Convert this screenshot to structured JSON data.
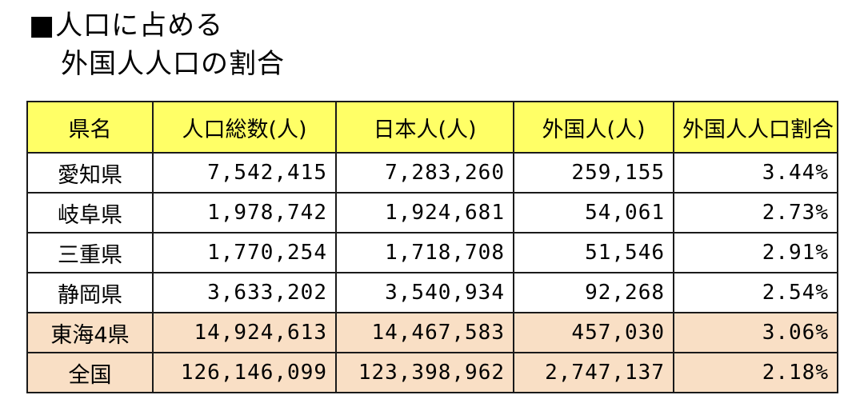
{
  "title": {
    "line1": "■人口に占める",
    "line2": "外国人人口の割合"
  },
  "table": {
    "headers": [
      "県名",
      "人口総数(人)",
      "日本人(人)",
      "外国人(人)",
      "外国人人口割合"
    ],
    "rows": [
      {
        "pref": "愛知県",
        "total": "7,542,415",
        "japanese": "7,283,260",
        "foreign": "259,155",
        "ratio": "3.44%"
      },
      {
        "pref": "岐阜県",
        "total": "1,978,742",
        "japanese": "1,924,681",
        "foreign": "54,061",
        "ratio": "2.73%"
      },
      {
        "pref": "三重県",
        "total": "1,770,254",
        "japanese": "1,718,708",
        "foreign": "51,546",
        "ratio": "2.91%"
      },
      {
        "pref": "静岡県",
        "total": "3,633,202",
        "japanese": "3,540,934",
        "foreign": "92,268",
        "ratio": "2.54%"
      },
      {
        "pref": "東海4県",
        "total": "14,924,613",
        "japanese": "14,467,583",
        "foreign": "457,030",
        "ratio": "3.06%"
      },
      {
        "pref": "全国",
        "total": "126,146,099",
        "japanese": "123,398,962",
        "foreign": "2,747,137",
        "ratio": "2.18%"
      }
    ]
  },
  "colors": {
    "header_bg": "#ffff66",
    "summary_bg": "#f9dfc5",
    "border": "#1a1a1a"
  }
}
